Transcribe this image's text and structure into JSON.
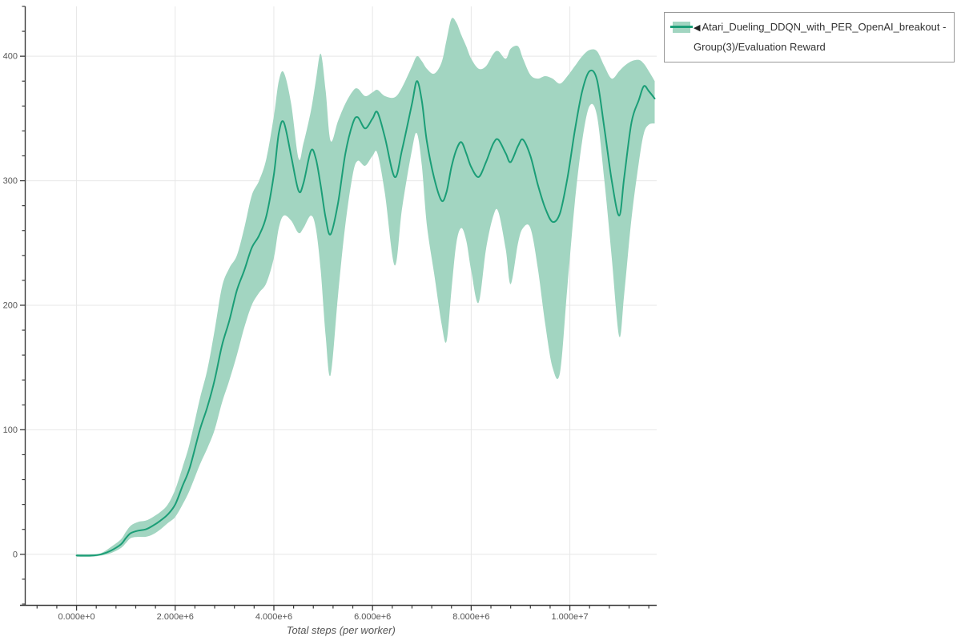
{
  "legend": {
    "marker": "◀",
    "label": "Atari_Dueling_DDQN_with_PER_OpenAI_breakout - Group(3)/Evaluation Reward"
  },
  "chart_data": {
    "type": "line",
    "title": "",
    "xlabel": "Total steps (per worker)",
    "ylabel": "",
    "legend_position": "top-right outside",
    "grid": true,
    "xlim_millions": [
      -1.04,
      11.76
    ],
    "ylim": [
      -41,
      440
    ],
    "x_ticks": [
      {
        "v": 0,
        "label": "0.000e+0"
      },
      {
        "v": 2,
        "label": "2.000e+6"
      },
      {
        "v": 4,
        "label": "4.000e+6"
      },
      {
        "v": 6,
        "label": "6.000e+6"
      },
      {
        "v": 8,
        "label": "8.000e+6"
      },
      {
        "v": 10,
        "label": "1.000e+7"
      }
    ],
    "y_ticks": [
      {
        "v": 0,
        "label": "0"
      },
      {
        "v": 100,
        "label": "100"
      },
      {
        "v": 200,
        "label": "200"
      },
      {
        "v": 300,
        "label": "300"
      },
      {
        "v": 400,
        "label": "400"
      }
    ],
    "x_minor_tick_step_millions": 0.4,
    "y_minor_tick_step": 20,
    "colors": {
      "line": "#1b9e77",
      "band": "#a2d5c1",
      "grid": "#e7e7e7",
      "axis": "#3b3b3b",
      "tick_label": "#555555",
      "axis_title": "#555555",
      "legend_border": "#999999",
      "legend_text": "#333333",
      "background": "#ffffff"
    },
    "series": [
      {
        "name": "Atari_Dueling_DDQN_with_PER_OpenAI_breakout - Group(3)/Evaluation Reward",
        "color": "#1b9e77",
        "band_color": "#a2d5c1",
        "points_format": [
          "step_millions",
          "band_lower",
          "mean",
          "band_upper"
        ],
        "points": [
          [
            0.0,
            -2,
            -1,
            0
          ],
          [
            0.3,
            -2,
            -1,
            0
          ],
          [
            0.5,
            -1,
            0,
            1
          ],
          [
            0.7,
            1,
            3,
            6
          ],
          [
            0.9,
            5,
            8,
            12
          ],
          [
            1.0,
            9,
            13,
            18
          ],
          [
            1.1,
            13,
            17,
            23
          ],
          [
            1.25,
            14,
            19,
            26
          ],
          [
            1.4,
            14,
            20,
            27
          ],
          [
            1.55,
            16,
            23,
            30
          ],
          [
            1.7,
            20,
            27,
            34
          ],
          [
            1.85,
            25,
            32,
            40
          ],
          [
            2.0,
            30,
            40,
            52
          ],
          [
            2.15,
            40,
            55,
            70
          ],
          [
            2.3,
            52,
            70,
            90
          ],
          [
            2.5,
            72,
            100,
            125
          ],
          [
            2.65,
            85,
            118,
            148
          ],
          [
            2.8,
            100,
            140,
            180
          ],
          [
            2.95,
            122,
            168,
            215
          ],
          [
            3.1,
            140,
            188,
            230
          ],
          [
            3.25,
            160,
            212,
            240
          ],
          [
            3.4,
            182,
            228,
            262
          ],
          [
            3.55,
            200,
            246,
            288
          ],
          [
            3.7,
            210,
            256,
            300
          ],
          [
            3.85,
            218,
            272,
            318
          ],
          [
            4.0,
            238,
            305,
            352
          ],
          [
            4.1,
            262,
            338,
            380
          ],
          [
            4.2,
            272,
            347,
            387
          ],
          [
            4.35,
            268,
            320,
            362
          ],
          [
            4.5,
            258,
            292,
            318
          ],
          [
            4.6,
            262,
            298,
            330
          ],
          [
            4.75,
            272,
            324,
            356
          ],
          [
            4.85,
            262,
            318,
            380
          ],
          [
            4.95,
            228,
            296,
            402
          ],
          [
            5.05,
            175,
            270,
            372
          ],
          [
            5.15,
            144,
            257,
            332
          ],
          [
            5.3,
            208,
            282,
            348
          ],
          [
            5.45,
            265,
            322,
            362
          ],
          [
            5.6,
            305,
            346,
            372
          ],
          [
            5.7,
            316,
            351,
            374
          ],
          [
            5.85,
            312,
            342,
            368
          ],
          [
            6.0,
            320,
            350,
            371
          ],
          [
            6.1,
            322,
            355,
            373
          ],
          [
            6.25,
            290,
            335,
            368
          ],
          [
            6.45,
            232,
            303,
            367
          ],
          [
            6.6,
            278,
            325,
            375
          ],
          [
            6.8,
            325,
            362,
            392
          ],
          [
            6.9,
            338,
            380,
            400
          ],
          [
            7.0,
            312,
            364,
            396
          ],
          [
            7.1,
            265,
            332,
            390
          ],
          [
            7.25,
            225,
            302,
            386
          ],
          [
            7.4,
            185,
            284,
            395
          ],
          [
            7.5,
            171,
            291,
            413
          ],
          [
            7.6,
            212,
            311,
            430
          ],
          [
            7.7,
            250,
            325,
            427
          ],
          [
            7.8,
            262,
            331,
            417
          ],
          [
            7.9,
            252,
            322,
            408
          ],
          [
            8.0,
            228,
            311,
            398
          ],
          [
            8.15,
            202,
            303,
            390
          ],
          [
            8.3,
            245,
            315,
            392
          ],
          [
            8.45,
            272,
            330,
            402
          ],
          [
            8.55,
            275,
            333,
            404
          ],
          [
            8.7,
            245,
            322,
            398
          ],
          [
            8.8,
            217,
            315,
            406
          ],
          [
            8.95,
            250,
            328,
            408
          ],
          [
            9.05,
            262,
            333,
            398
          ],
          [
            9.2,
            262,
            320,
            385
          ],
          [
            9.35,
            230,
            297,
            382
          ],
          [
            9.5,
            185,
            278,
            384
          ],
          [
            9.65,
            150,
            267,
            382
          ],
          [
            9.8,
            146,
            274,
            378
          ],
          [
            9.95,
            215,
            302,
            384
          ],
          [
            10.1,
            282,
            340,
            392
          ],
          [
            10.25,
            332,
            372,
            400
          ],
          [
            10.4,
            360,
            388,
            405
          ],
          [
            10.55,
            352,
            381,
            404
          ],
          [
            10.7,
            300,
            342,
            392
          ],
          [
            10.85,
            238,
            300,
            382
          ],
          [
            11.0,
            175,
            272,
            388
          ],
          [
            11.1,
            208,
            302,
            392
          ],
          [
            11.25,
            270,
            347,
            396
          ],
          [
            11.4,
            315,
            365,
            397
          ],
          [
            11.5,
            338,
            376,
            394
          ],
          [
            11.6,
            345,
            372,
            388
          ],
          [
            11.72,
            346,
            366,
            380
          ]
        ]
      }
    ]
  }
}
